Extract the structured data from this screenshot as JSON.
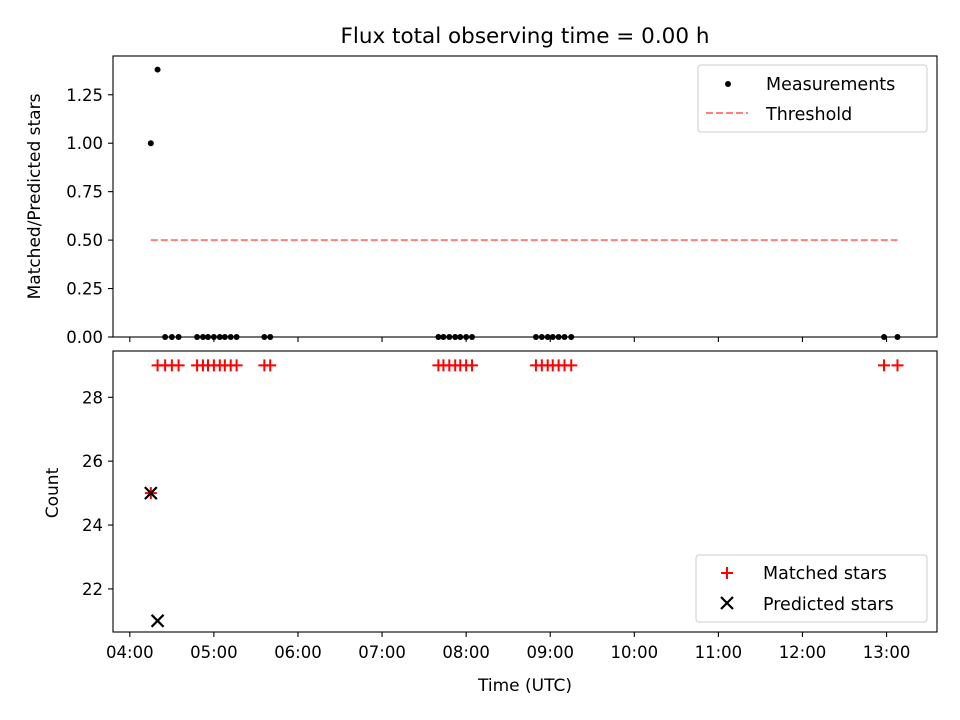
{
  "chart_data": [
    {
      "type": "scatter",
      "title": "Flux total observing time = 0.00 h",
      "ylabel": "Matched/Predicted stars",
      "xlabel": "",
      "xlim_hours": [
        3.8,
        13.6
      ],
      "ylim": [
        0,
        1.45
      ],
      "yticks": [
        0.0,
        0.25,
        0.5,
        0.75,
        1.0,
        1.25
      ],
      "ytick_labels": [
        "0.00",
        "0.25",
        "0.50",
        "0.75",
        "1.00",
        "1.25"
      ],
      "legend": {
        "placement": "upper right",
        "items": [
          "Measurements",
          "Threshold"
        ]
      },
      "series": [
        {
          "name": "Measurements",
          "marker": "dot",
          "color": "#000000",
          "points": [
            [
              4.25,
              1.0
            ],
            [
              4.33,
              1.38
            ],
            [
              4.42,
              0
            ],
            [
              4.5,
              0
            ],
            [
              4.58,
              0
            ],
            [
              4.8,
              0
            ],
            [
              4.87,
              0
            ],
            [
              4.93,
              0
            ],
            [
              5.0,
              0
            ],
            [
              5.07,
              0
            ],
            [
              5.13,
              0
            ],
            [
              5.2,
              0
            ],
            [
              5.27,
              0
            ],
            [
              5.6,
              0
            ],
            [
              5.67,
              0
            ],
            [
              7.67,
              0
            ],
            [
              7.73,
              0
            ],
            [
              7.8,
              0
            ],
            [
              7.87,
              0
            ],
            [
              7.93,
              0
            ],
            [
              8.0,
              0
            ],
            [
              8.07,
              0
            ],
            [
              8.83,
              0
            ],
            [
              8.9,
              0
            ],
            [
              8.97,
              0
            ],
            [
              9.03,
              0
            ],
            [
              9.1,
              0
            ],
            [
              9.17,
              0
            ],
            [
              9.25,
              0
            ],
            [
              12.97,
              0
            ],
            [
              13.13,
              0
            ]
          ]
        },
        {
          "name": "Threshold",
          "line": "dashed",
          "color": "#ff7f7f",
          "points": [
            [
              4.25,
              0.5
            ],
            [
              13.13,
              0.5
            ]
          ]
        }
      ]
    },
    {
      "type": "scatter",
      "title": "",
      "ylabel": "Count",
      "xlabel": "Time (UTC)",
      "xlim_hours": [
        3.8,
        13.6
      ],
      "ylim": [
        20.65,
        29.45
      ],
      "yticks": [
        22,
        24,
        26,
        28
      ],
      "ytick_labels": [
        "22",
        "24",
        "26",
        "28"
      ],
      "xticks_hours": [
        4,
        5,
        6,
        7,
        8,
        9,
        10,
        11,
        12,
        13
      ],
      "xtick_labels": [
        "04:00",
        "05:00",
        "06:00",
        "07:00",
        "08:00",
        "09:00",
        "10:00",
        "11:00",
        "12:00",
        "13:00"
      ],
      "legend": {
        "placement": "lower right",
        "items": [
          "Matched stars",
          "Predicted stars"
        ]
      },
      "series": [
        {
          "name": "Matched stars",
          "marker": "plus",
          "color": "#ff0000",
          "points": [
            [
              4.25,
              25
            ],
            [
              4.33,
              29
            ],
            [
              4.42,
              29
            ],
            [
              4.5,
              29
            ],
            [
              4.58,
              29
            ],
            [
              4.8,
              29
            ],
            [
              4.87,
              29
            ],
            [
              4.93,
              29
            ],
            [
              5.0,
              29
            ],
            [
              5.07,
              29
            ],
            [
              5.13,
              29
            ],
            [
              5.2,
              29
            ],
            [
              5.27,
              29
            ],
            [
              5.6,
              29
            ],
            [
              5.67,
              29
            ],
            [
              7.67,
              29
            ],
            [
              7.73,
              29
            ],
            [
              7.8,
              29
            ],
            [
              7.87,
              29
            ],
            [
              7.93,
              29
            ],
            [
              8.0,
              29
            ],
            [
              8.07,
              29
            ],
            [
              8.83,
              29
            ],
            [
              8.9,
              29
            ],
            [
              8.97,
              29
            ],
            [
              9.03,
              29
            ],
            [
              9.1,
              29
            ],
            [
              9.17,
              29
            ],
            [
              9.25,
              29
            ],
            [
              12.97,
              29
            ],
            [
              13.13,
              29
            ]
          ]
        },
        {
          "name": "Predicted stars",
          "marker": "x",
          "color": "#000000",
          "points": [
            [
              4.25,
              25
            ],
            [
              4.33,
              21
            ]
          ]
        }
      ]
    }
  ]
}
